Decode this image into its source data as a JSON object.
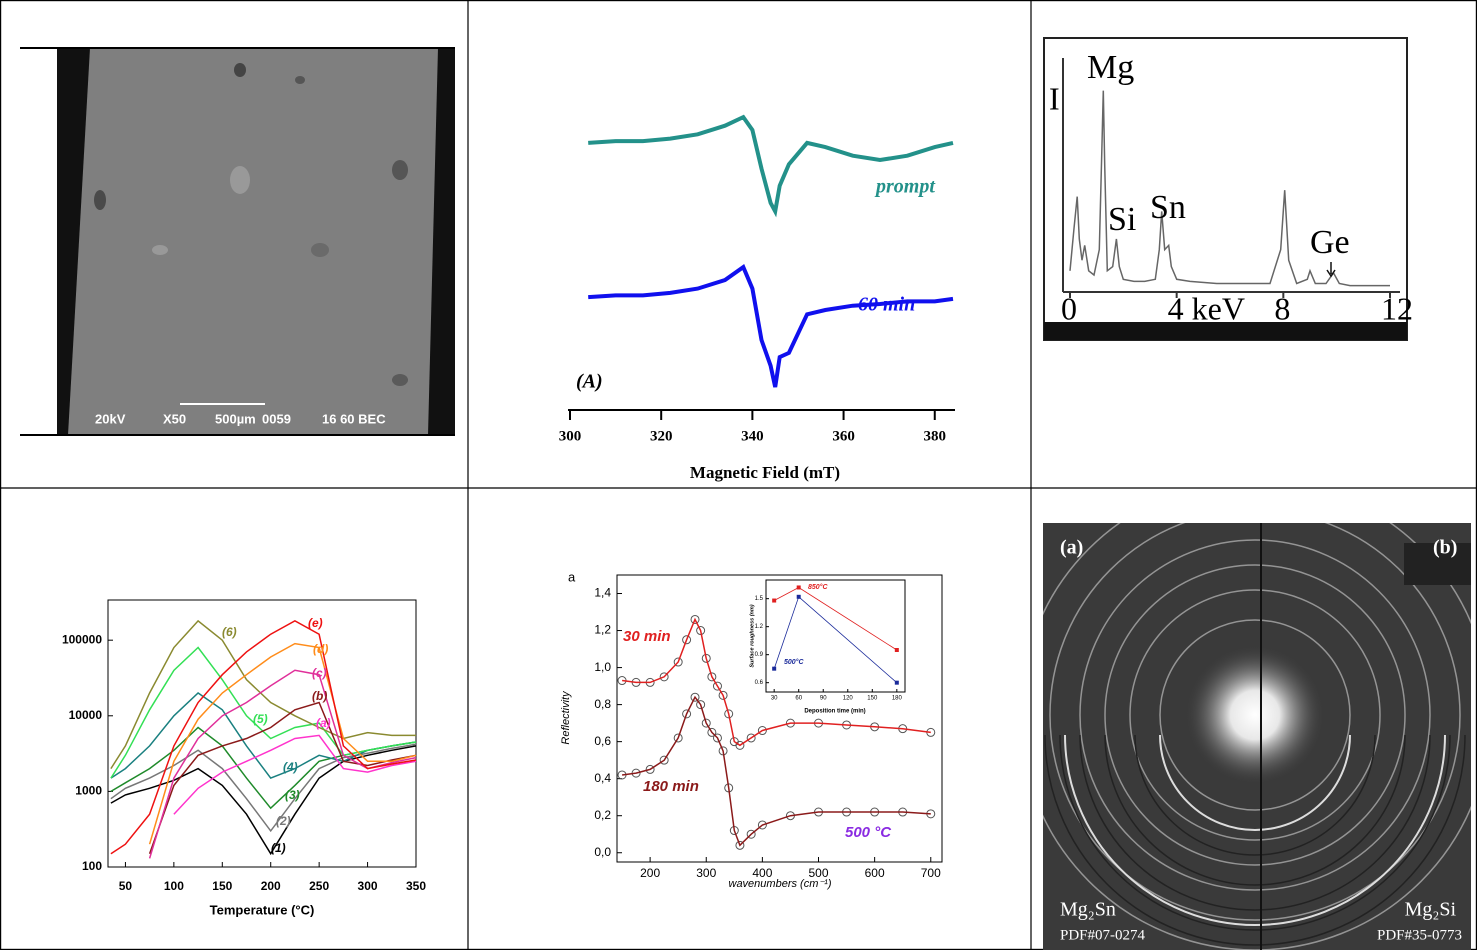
{
  "chart_data": [
    {
      "type": "line",
      "annotation": "(A)",
      "xlabel": "Magnetic Field (mT)",
      "x": [
        304,
        310,
        316,
        322,
        328,
        334,
        338,
        340,
        342,
        344,
        345,
        346,
        348,
        352,
        356,
        362,
        368,
        374,
        380,
        384
      ],
      "xlim": [
        300,
        384
      ],
      "xticks": [
        300,
        320,
        340,
        360,
        380
      ],
      "ylim": [
        -1,
        2.5
      ],
      "series": [
        {
          "name": "prompt",
          "color": "#23918a",
          "values": [
            2.0,
            2.02,
            2.02,
            2.05,
            2.1,
            2.2,
            2.3,
            2.15,
            1.7,
            1.3,
            1.2,
            1.5,
            1.75,
            2.0,
            1.95,
            1.85,
            1.8,
            1.85,
            1.95,
            2.0
          ]
        },
        {
          "name": "60 min",
          "color": "#1010ee",
          "values": [
            0.2,
            0.22,
            0.22,
            0.25,
            0.3,
            0.4,
            0.55,
            0.3,
            -0.3,
            -0.6,
            -0.85,
            -0.5,
            -0.45,
            0.0,
            0.05,
            0.1,
            0.12,
            0.15,
            0.15,
            0.18
          ]
        }
      ]
    },
    {
      "type": "line",
      "ylabel": "I",
      "peak_labels": [
        "Mg",
        "Si",
        "Sn",
        "Ge"
      ],
      "x": [
        0,
        0.15,
        0.27,
        0.35,
        0.45,
        0.55,
        0.7,
        0.9,
        1.1,
        1.2,
        1.25,
        1.3,
        1.4,
        1.6,
        1.74,
        1.85,
        2.0,
        2.4,
        2.8,
        3.2,
        3.35,
        3.44,
        3.55,
        3.7,
        3.8,
        4.0,
        4.5,
        5.5,
        6.5,
        7.5,
        7.9,
        8.05,
        8.2,
        8.5,
        8.9,
        9.0,
        9.2,
        9.6,
        9.88,
        10.1,
        10.5,
        11,
        12
      ],
      "xlim": [
        -0.3,
        12.3
      ],
      "xticks": [
        0,
        {
          "value": 4,
          "label": "4 keV"
        },
        8,
        12
      ],
      "ylim": [
        0,
        100
      ],
      "series": [
        {
          "color": "#666666",
          "values": [
            10,
            30,
            45,
            25,
            15,
            22,
            10,
            8,
            20,
            70,
            95,
            60,
            10,
            12,
            25,
            12,
            6,
            5,
            5,
            6,
            20,
            38,
            20,
            22,
            12,
            6,
            5,
            4,
            4,
            4,
            20,
            48,
            15,
            4,
            6,
            10,
            4,
            4,
            9,
            4,
            3,
            3,
            3
          ]
        }
      ]
    },
    {
      "type": "line",
      "xlabel": "Temperature (°C)",
      "ylog": true,
      "x": [
        35,
        50,
        75,
        100,
        125,
        150,
        175,
        200,
        225,
        250,
        275,
        300,
        325,
        350
      ],
      "xlim": [
        32,
        350
      ],
      "xticks": [
        50,
        100,
        150,
        200,
        250,
        300,
        350
      ],
      "ylim": [
        100,
        340000
      ],
      "yticks": [
        100,
        1000,
        10000,
        100000
      ],
      "series": [
        {
          "name": "(1)",
          "color": "#000000",
          "values": [
            700,
            900,
            1100,
            1400,
            2000,
            1200,
            500,
            150,
            500,
            1500,
            2500,
            3000,
            3500,
            4000
          ]
        },
        {
          "name": "(2)",
          "color": "#777777",
          "values": [
            800,
            1100,
            1500,
            2200,
            3500,
            2000,
            800,
            300,
            800,
            2000,
            2800,
            3200,
            3700,
            4200
          ]
        },
        {
          "name": "(3)",
          "color": "#1f8a2a",
          "values": [
            1000,
            1300,
            2000,
            3500,
            7000,
            4000,
            1500,
            600,
            1200,
            2500,
            3000,
            3500,
            4000,
            4500
          ]
        },
        {
          "name": "(4)",
          "color": "#1a8080",
          "values": [
            1500,
            2000,
            4000,
            10000,
            20000,
            12000,
            4000,
            1500,
            2000,
            3000,
            2500,
            3500,
            4000,
            4500
          ]
        },
        {
          "name": "(5)",
          "color": "#33e055",
          "values": [
            1500,
            3000,
            12000,
            40000,
            80000,
            30000,
            10000,
            5000,
            7000,
            8000,
            3000,
            3500,
            4000,
            4500
          ]
        },
        {
          "name": "(6)",
          "color": "#8a8a30",
          "values": [
            2000,
            4000,
            20000,
            80000,
            180000,
            100000,
            30000,
            15000,
            10000,
            7000,
            5000,
            6000,
            5500,
            5500
          ]
        },
        {
          "name": "(a)",
          "color": "#ff33cc",
          "values": [
            null,
            null,
            null,
            500,
            1100,
            1800,
            2500,
            3500,
            5000,
            5500,
            2000,
            1800,
            2200,
            2500
          ]
        },
        {
          "name": "(b)",
          "color": "#8b1a1a",
          "values": [
            null,
            null,
            150,
            1200,
            3000,
            4000,
            5000,
            7000,
            12000,
            15000,
            2500,
            2200,
            2600,
            3000
          ]
        },
        {
          "name": "(c)",
          "color": "#e0309a",
          "values": [
            null,
            null,
            130,
            1500,
            5000,
            10000,
            15000,
            25000,
            40000,
            35000,
            3000,
            2000,
            2400,
            2800
          ]
        },
        {
          "name": "(d)",
          "color": "#ff8c1a",
          "values": [
            null,
            null,
            200,
            2500,
            9000,
            20000,
            35000,
            60000,
            90000,
            80000,
            5000,
            2500,
            2500,
            3000
          ]
        },
        {
          "name": "(e)",
          "color": "#ee1111",
          "values": [
            150,
            200,
            500,
            4000,
            15000,
            35000,
            70000,
            120000,
            180000,
            120000,
            4000,
            2000,
            2300,
            2600
          ]
        }
      ]
    },
    {
      "type": "scatter",
      "panel_label": "a",
      "xlabel": "wavenumbers (cm⁻¹)",
      "ylabel": "Reflectivity",
      "annotation": "500 °C",
      "x": [
        150,
        175,
        200,
        225,
        250,
        265,
        280,
        290,
        300,
        310,
        320,
        330,
        340,
        350,
        360,
        380,
        400,
        450,
        500,
        550,
        600,
        650,
        700
      ],
      "xlim": [
        141,
        720
      ],
      "xticks": [
        200,
        300,
        400,
        500,
        600,
        700
      ],
      "ylim": [
        -0.05,
        1.5
      ],
      "yticks": [
        {
          "value": 0,
          "label": "0,0"
        },
        {
          "value": 0.2,
          "label": "0,2"
        },
        {
          "value": 0.4,
          "label": "0,4"
        },
        {
          "value": 0.6,
          "label": "0,6"
        },
        {
          "value": 0.8,
          "label": "0,8"
        },
        {
          "value": 1.0,
          "label": "1,0"
        },
        {
          "value": 1.2,
          "label": "1,2"
        },
        {
          "value": 1.4,
          "label": "1,4"
        }
      ],
      "series": [
        {
          "name": "30 min",
          "color": "#e02020",
          "values": [
            0.93,
            0.92,
            0.92,
            0.95,
            1.03,
            1.15,
            1.26,
            1.2,
            1.05,
            0.95,
            0.9,
            0.85,
            0.75,
            0.6,
            0.58,
            0.62,
            0.66,
            0.7,
            0.7,
            0.69,
            0.68,
            0.67,
            0.65
          ]
        },
        {
          "name": "180 min",
          "color": "#8b1a1a",
          "values": [
            0.42,
            0.43,
            0.45,
            0.5,
            0.62,
            0.75,
            0.84,
            0.8,
            0.7,
            0.65,
            0.62,
            0.55,
            0.35,
            0.12,
            0.04,
            0.1,
            0.15,
            0.2,
            0.22,
            0.22,
            0.22,
            0.22,
            0.21
          ]
        }
      ]
    },
    {
      "type": "line",
      "xlabel": "Deposition time (min)",
      "ylabel": "Surface roughness (nm)",
      "x": [
        30,
        60,
        180
      ],
      "xlim": [
        20,
        190
      ],
      "xticks": [
        30,
        60,
        90,
        120,
        150,
        180
      ],
      "ylim": [
        0.5,
        1.7
      ],
      "yticks": [
        0.6,
        0.9,
        1.2,
        1.5
      ],
      "series": [
        {
          "name": "850°C",
          "color": "#e02020",
          "values": [
            1.48,
            1.62,
            0.95
          ]
        },
        {
          "name": "500°C",
          "color": "#1a2a9a",
          "values": [
            0.75,
            1.52,
            0.6
          ]
        }
      ]
    }
  ],
  "images": {
    "sem": {
      "labels": [
        "20kV",
        "X50",
        "500µm",
        "0059",
        "16 60 BEC"
      ]
    },
    "diffraction": {
      "left_label": "(a)",
      "right_label": "(b)",
      "left_phase": "Mg₂Sn",
      "left_pdf": "PDF#07-0274",
      "right_phase": "Mg₂Si",
      "right_pdf": "PDF#35-0773"
    }
  }
}
